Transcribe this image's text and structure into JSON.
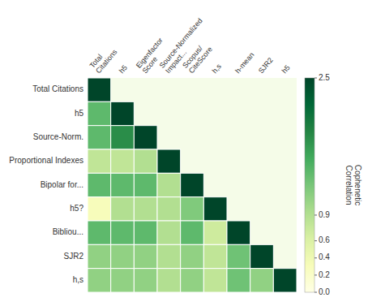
{
  "chart_data": {
    "type": "heatmap",
    "rows": [
      "Total Citations",
      "h5",
      "Source-Norm.",
      "Proportional Indexes",
      "Bipolar for...",
      "h5?",
      "Bibliou...",
      "SJR2",
      "h,s"
    ],
    "columns": [
      "Total\nCitations",
      "h5",
      "Eigenfactor\nScore",
      "Source-Normalized\nImpact...",
      "Scopus/\nCiteScore",
      "h,s",
      "h-mean",
      "SJR2",
      "h5"
    ],
    "cells": [
      [
        2.5,
        null,
        null,
        null,
        null,
        null,
        null,
        null,
        null
      ],
      [
        1.4,
        2.5,
        null,
        null,
        null,
        null,
        null,
        null,
        null
      ],
      [
        1.4,
        1.8,
        2.5,
        null,
        null,
        null,
        null,
        null,
        null
      ],
      [
        0.8,
        0.8,
        0.9,
        2.5,
        null,
        null,
        null,
        null,
        null
      ],
      [
        1.4,
        1.4,
        1.4,
        0.9,
        2.5,
        null,
        null,
        null,
        null
      ],
      [
        0.3,
        0.9,
        0.9,
        0.9,
        1.2,
        2.5,
        null,
        null,
        null
      ],
      [
        1.4,
        1.4,
        1.4,
        0.9,
        1.4,
        0.7,
        2.5,
        null,
        null
      ],
      [
        1.1,
        1.1,
        1.1,
        0.9,
        1.1,
        0.8,
        1.3,
        2.5,
        null
      ],
      [
        1.1,
        1.1,
        1.1,
        0.9,
        1.1,
        0.8,
        1.3,
        1.1,
        2.5
      ]
    ],
    "colorbar_label": "Cophenetic\nCorrelation",
    "color_range": [
      0.0,
      2.5
    ],
    "color_ticks": [
      {
        "value": 0,
        "label": "0.0"
      },
      0.2,
      0.4,
      0.6,
      0.9,
      2.5
    ],
    "color": "#f5fce8"
  }
}
